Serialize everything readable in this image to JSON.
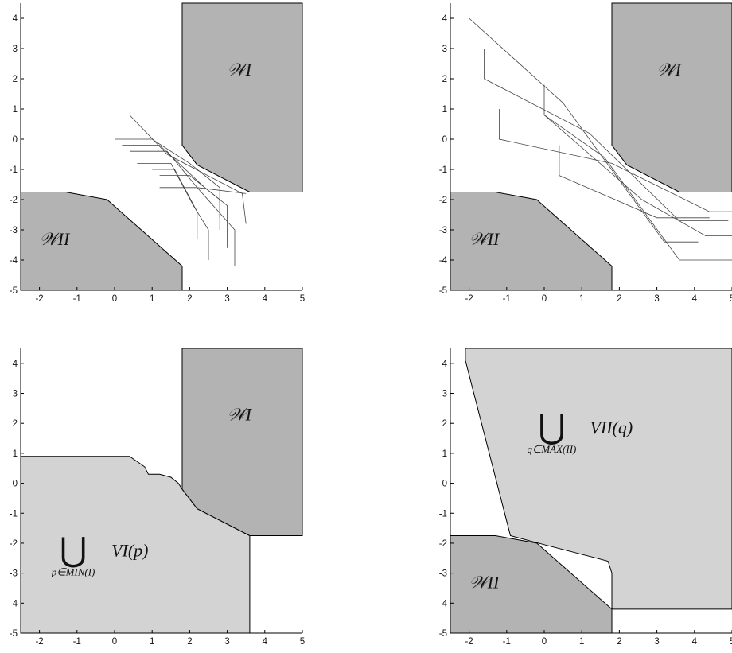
{
  "x_ticks": [
    "-2",
    "-1",
    "0",
    "1",
    "2",
    "3",
    "4",
    "5"
  ],
  "y_ticks": [
    "4",
    "3",
    "2",
    "1",
    "0",
    "-1",
    "-2",
    "-3",
    "-4",
    "-5"
  ],
  "colors": {
    "dark_region": "#b3b3b3",
    "light_region": "#d3d3d3",
    "line": "#222222",
    "thin_line": "#444444"
  },
  "panels": [
    {
      "id": "top-left",
      "labels": {
        "w_one": "𝒲I",
        "w_two": "𝒲II"
      }
    },
    {
      "id": "top-right",
      "labels": {
        "w_one": "𝒲I",
        "w_two": "𝒲II"
      }
    },
    {
      "id": "bottom-left",
      "labels": {
        "w_one": "𝒲I",
        "union_symbol": "⋃",
        "union_sub": "p∈MIN(I)",
        "union_term": "VI(p)"
      }
    },
    {
      "id": "bottom-right",
      "labels": {
        "w_two": "𝒲II",
        "union_symbol": "⋃",
        "union_sub": "q∈MAX(II)",
        "union_term": "VII(q)"
      }
    }
  ]
}
